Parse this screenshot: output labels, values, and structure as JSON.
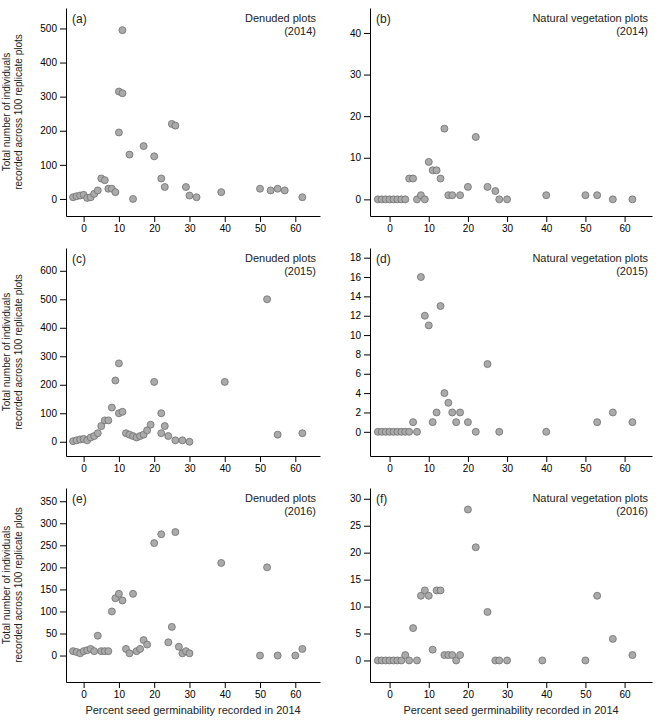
{
  "chart_data": [
    {
      "type": "scatter",
      "title": "Denuded plots\n(2014)",
      "annotations": [
        "(a)"
      ],
      "x": [
        -3,
        -2,
        -1,
        0,
        1,
        2,
        3,
        4,
        5,
        6,
        7,
        8,
        9,
        10,
        10,
        11,
        11,
        13,
        14,
        17,
        20,
        22,
        23,
        25,
        26,
        29,
        30,
        32,
        39,
        50,
        53,
        55,
        57,
        62
      ],
      "values": [
        5,
        8,
        10,
        12,
        3,
        5,
        15,
        25,
        60,
        55,
        30,
        30,
        20,
        195,
        315,
        310,
        495,
        130,
        0,
        155,
        125,
        60,
        35,
        220,
        215,
        35,
        10,
        5,
        20,
        30,
        25,
        30,
        25,
        5
      ],
      "xlim": [
        -5,
        67
      ],
      "xticks": [
        0,
        10,
        20,
        30,
        40,
        50,
        60
      ],
      "ylim": [
        -50,
        560
      ],
      "yticks": [
        0,
        100,
        200,
        300,
        400,
        500
      ],
      "color": "#aaaaaa",
      "grid": false,
      "ylabel": "Total number of individuals\nrecorded across 100 replicate plots"
    },
    {
      "type": "scatter",
      "title": "Natural vegetation plots\n(2014)",
      "annotations": [
        "(b)"
      ],
      "x": [
        -3,
        -2,
        -1,
        0,
        1,
        2,
        3,
        4,
        5,
        6,
        7,
        8,
        9,
        10,
        11,
        12,
        13,
        14,
        15,
        16,
        18,
        20,
        22,
        25,
        27,
        28,
        30,
        40,
        50,
        53,
        57,
        62
      ],
      "values": [
        0,
        0,
        0,
        0,
        0,
        0,
        0,
        0,
        5,
        5,
        0,
        1,
        0,
        9,
        7,
        7,
        5,
        17,
        1,
        1,
        1,
        3,
        15,
        3,
        2,
        0,
        0,
        1,
        1,
        1,
        0,
        0
      ],
      "xlim": [
        -5,
        67
      ],
      "xticks": [
        0,
        10,
        20,
        30,
        40,
        50,
        60
      ],
      "ylim": [
        -4,
        46
      ],
      "yticks": [
        0,
        10,
        20,
        30,
        40
      ],
      "color": "#aaaaaa",
      "grid": false
    },
    {
      "type": "scatter",
      "title": "Denuded plots\n(2015)",
      "annotations": [
        "(c)"
      ],
      "x": [
        -3,
        -2,
        -1,
        0,
        1,
        2,
        3,
        4,
        5,
        6,
        7,
        8,
        9,
        10,
        10,
        11,
        12,
        13,
        14,
        15,
        16,
        17,
        18,
        19,
        20,
        22,
        22,
        23,
        24,
        26,
        28,
        30,
        40,
        52,
        55,
        62
      ],
      "values": [
        2,
        5,
        8,
        10,
        5,
        15,
        20,
        30,
        55,
        75,
        75,
        120,
        215,
        275,
        100,
        105,
        30,
        25,
        20,
        15,
        20,
        25,
        40,
        60,
        210,
        30,
        100,
        55,
        20,
        5,
        5,
        0,
        210,
        500,
        25,
        30
      ],
      "xlim": [
        -5,
        67
      ],
      "xticks": [
        0,
        10,
        20,
        30,
        40,
        50,
        60
      ],
      "ylim": [
        -50,
        680
      ],
      "yticks": [
        0,
        100,
        200,
        300,
        400,
        500,
        600
      ],
      "color": "#aaaaaa",
      "grid": false,
      "ylabel": "Total number of individuals\nrecorded across 100 replicate plots"
    },
    {
      "type": "scatter",
      "title": "Natural vegetation plots\n(2015)",
      "annotations": [
        "(d)"
      ],
      "x": [
        -3,
        -2,
        -1,
        0,
        1,
        2,
        3,
        4,
        5,
        6,
        7,
        8,
        9,
        10,
        11,
        12,
        13,
        14,
        15,
        16,
        17,
        18,
        20,
        22,
        25,
        28,
        40,
        53,
        57,
        62
      ],
      "values": [
        0,
        0,
        0,
        0,
        0,
        0,
        0,
        0,
        0,
        1,
        0,
        16,
        12,
        11,
        1,
        2,
        13,
        4,
        3,
        2,
        1,
        2,
        1,
        0,
        7,
        0,
        0,
        1,
        2,
        1
      ],
      "xlim": [
        -5,
        67
      ],
      "xticks": [
        0,
        10,
        20,
        30,
        40,
        50,
        60
      ],
      "ylim": [
        -2.5,
        19
      ],
      "yticks": [
        0,
        2,
        4,
        6,
        8,
        10,
        12,
        14,
        16,
        18
      ],
      "color": "#aaaaaa",
      "grid": false
    },
    {
      "type": "scatter",
      "title": "Denuded plots\n(2016)",
      "annotations": [
        "(e)"
      ],
      "x": [
        -3,
        -2,
        -1,
        0,
        1,
        2,
        3,
        4,
        5,
        6,
        7,
        8,
        9,
        10,
        11,
        12,
        13,
        14,
        15,
        16,
        17,
        18,
        20,
        22,
        24,
        25,
        26,
        27,
        28,
        29,
        30,
        39,
        50,
        52,
        55,
        60,
        62
      ],
      "values": [
        10,
        8,
        5,
        10,
        12,
        15,
        10,
        45,
        10,
        10,
        10,
        100,
        130,
        140,
        125,
        15,
        5,
        140,
        10,
        15,
        35,
        25,
        255,
        275,
        30,
        65,
        280,
        20,
        5,
        10,
        5,
        210,
        0,
        200,
        0,
        0,
        15
      ],
      "xlim": [
        -5,
        67
      ],
      "xticks": [
        0,
        10,
        20,
        30,
        40,
        50,
        60
      ],
      "ylim": [
        -60,
        380
      ],
      "yticks": [
        0,
        50,
        100,
        150,
        200,
        250,
        300,
        350
      ],
      "color": "#aaaaaa",
      "grid": false,
      "xlabel": "Percent seed germinability recorded in 2014",
      "ylabel": "Total number of individuals\nrecorded across 100 replicate plots"
    },
    {
      "type": "scatter",
      "title": "Natural vegetation plots\n(2016)",
      "annotations": [
        "(f)"
      ],
      "x": [
        -3,
        -2,
        -1,
        0,
        1,
        2,
        3,
        4,
        5,
        6,
        7,
        8,
        9,
        10,
        11,
        12,
        13,
        14,
        15,
        16,
        17,
        18,
        20,
        22,
        25,
        27,
        28,
        30,
        39,
        50,
        53,
        57,
        62
      ],
      "values": [
        0,
        0,
        0,
        0,
        0,
        0,
        0,
        1,
        0,
        6,
        0,
        12,
        13,
        12,
        2,
        13,
        13,
        1,
        1,
        1,
        0,
        1,
        28,
        21,
        9,
        0,
        0,
        0,
        0,
        0,
        12,
        4,
        1
      ],
      "xlim": [
        -5,
        67
      ],
      "xticks": [
        0,
        10,
        20,
        30,
        40,
        50,
        60
      ],
      "ylim": [
        -4,
        32
      ],
      "yticks": [
        0,
        5,
        10,
        15,
        20,
        25,
        30
      ],
      "color": "#aaaaaa",
      "grid": false,
      "xlabel": "Percent seed germinability recorded in 2014"
    }
  ]
}
